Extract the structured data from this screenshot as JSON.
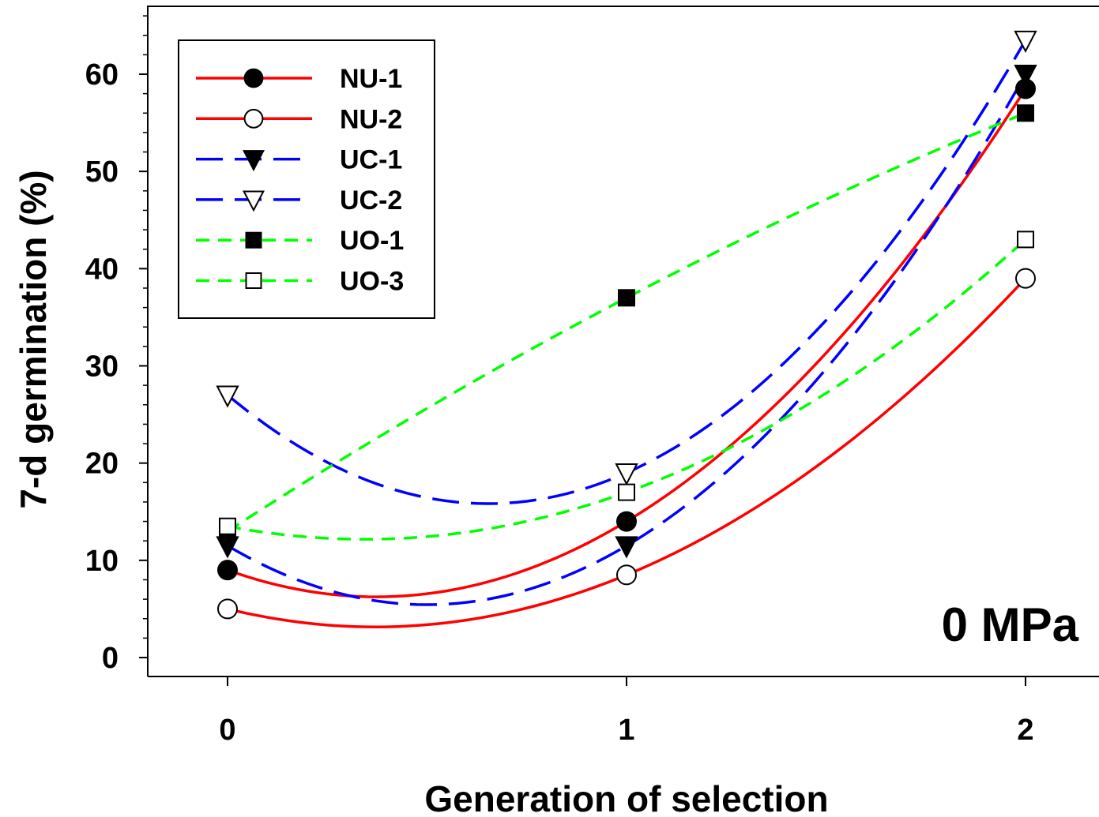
{
  "chart_data": {
    "type": "line",
    "title": "",
    "xlabel": "Generation of selection",
    "ylabel": "7-d germination (%)",
    "x": [
      0,
      1,
      2
    ],
    "x_tick_labels": [
      "0",
      "1",
      "2"
    ],
    "xlim": [
      -0.2,
      2.2
    ],
    "ylim": [
      -2,
      67
    ],
    "y_ticks": [
      0,
      10,
      20,
      30,
      40,
      50,
      60
    ],
    "y_tick_labels": [
      "0",
      "10",
      "20",
      "30",
      "40",
      "50",
      "60"
    ],
    "grid": false,
    "legend_position": "top-left",
    "annotation": "0 MPa",
    "series": [
      {
        "name": "NU-1",
        "values": [
          9,
          14,
          58.5
        ],
        "color": "#ff0000",
        "dash": "solid",
        "marker": "circle",
        "marker_fill": "filled"
      },
      {
        "name": "NU-2",
        "values": [
          5,
          8.5,
          39
        ],
        "color": "#ff0000",
        "dash": "solid",
        "marker": "circle",
        "marker_fill": "open"
      },
      {
        "name": "UC-1",
        "values": [
          11.5,
          11.5,
          60
        ],
        "color": "#0000ff",
        "dash": "long-dash",
        "marker": "triangle-down",
        "marker_fill": "filled"
      },
      {
        "name": "UC-2",
        "values": [
          27,
          19,
          63.5
        ],
        "color": "#0000ff",
        "dash": "long-dash",
        "marker": "triangle-down",
        "marker_fill": "open"
      },
      {
        "name": "UO-1",
        "values": [
          13,
          37,
          56
        ],
        "color": "#00ff00",
        "dash": "short-dash",
        "marker": "square",
        "marker_fill": "filled"
      },
      {
        "name": "UO-3",
        "values": [
          13.5,
          17,
          43
        ],
        "color": "#00ff00",
        "dash": "short-dash",
        "marker": "square",
        "marker_fill": "open"
      }
    ]
  }
}
